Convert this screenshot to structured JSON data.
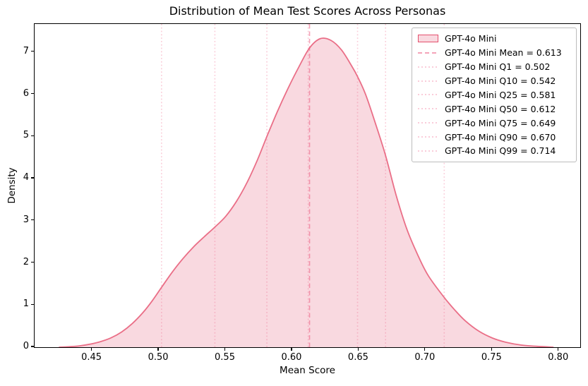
{
  "figure": {
    "title": "Distribution of Mean Test Scores Across Personas",
    "xlabel": "Mean Score",
    "ylabel": "Density"
  },
  "chart_data": {
    "type": "area",
    "subtype": "kde-density",
    "title": "Distribution of Mean Test Scores Across Personas",
    "xlabel": "Mean Score",
    "ylabel": "Density",
    "xlim": [
      0.4068,
      0.816
    ],
    "ylim": [
      0,
      7.667
    ],
    "grid": false,
    "x_ticks": [
      0.45,
      0.5,
      0.55,
      0.6,
      0.65,
      0.7,
      0.75,
      0.8
    ],
    "x_tick_labels": [
      "0.45",
      "0.50",
      "0.55",
      "0.60",
      "0.65",
      "0.70",
      "0.75",
      "0.80"
    ],
    "y_ticks": [
      0,
      1,
      2,
      3,
      4,
      5,
      6,
      7
    ],
    "y_tick_labels": [
      "0",
      "1",
      "2",
      "3",
      "4",
      "5",
      "6",
      "7"
    ],
    "series": [
      {
        "name": "GPT-4o Mini",
        "x": [
          0.425,
          0.432,
          0.44,
          0.448,
          0.456,
          0.464,
          0.472,
          0.48,
          0.488,
          0.495,
          0.502,
          0.51,
          0.518,
          0.526,
          0.534,
          0.542,
          0.55,
          0.558,
          0.566,
          0.574,
          0.581,
          0.589,
          0.597,
          0.605,
          0.613,
          0.621,
          0.629,
          0.637,
          0.645,
          0.649,
          0.655,
          0.662,
          0.67,
          0.678,
          0.686,
          0.694,
          0.702,
          0.714,
          0.722,
          0.73,
          0.74,
          0.75,
          0.76,
          0.772,
          0.784,
          0.796
        ],
        "density": [
          0.0,
          0.01,
          0.03,
          0.07,
          0.13,
          0.22,
          0.36,
          0.56,
          0.82,
          1.1,
          1.42,
          1.78,
          2.1,
          2.38,
          2.62,
          2.85,
          3.1,
          3.45,
          3.9,
          4.45,
          5.0,
          5.6,
          6.15,
          6.65,
          7.1,
          7.32,
          7.28,
          7.05,
          6.65,
          6.42,
          6.0,
          5.35,
          4.55,
          3.6,
          2.8,
          2.2,
          1.7,
          1.18,
          0.88,
          0.62,
          0.38,
          0.22,
          0.12,
          0.05,
          0.02,
          0.0
        ]
      }
    ],
    "stat_lines": [
      {
        "id": "mean",
        "value": 0.613,
        "style": "dashed"
      },
      {
        "id": "q1",
        "value": 0.502,
        "style": "dotted"
      },
      {
        "id": "q10",
        "value": 0.542,
        "style": "dotted"
      },
      {
        "id": "q25",
        "value": 0.581,
        "style": "dotted"
      },
      {
        "id": "q50",
        "value": 0.612,
        "style": "dotted"
      },
      {
        "id": "q75",
        "value": 0.649,
        "style": "dotted"
      },
      {
        "id": "q90",
        "value": 0.67,
        "style": "dotted"
      },
      {
        "id": "q99",
        "value": 0.714,
        "style": "dotted"
      }
    ],
    "legend": {
      "position": "upper right",
      "entries": [
        {
          "sample": "patch",
          "label": "GPT-4o Mini"
        },
        {
          "sample": "dashed",
          "label": "GPT-4o Mini Mean = 0.613"
        },
        {
          "sample": "dotted",
          "label": "GPT-4o Mini Q1 = 0.502"
        },
        {
          "sample": "dotted",
          "label": "GPT-4o Mini Q10 = 0.542"
        },
        {
          "sample": "dotted",
          "label": "GPT-4o Mini Q25 = 0.581"
        },
        {
          "sample": "dotted",
          "label": "GPT-4o Mini Q50 = 0.612"
        },
        {
          "sample": "dotted",
          "label": "GPT-4o Mini Q75 = 0.649"
        },
        {
          "sample": "dotted",
          "label": "GPT-4o Mini Q90 = 0.670"
        },
        {
          "sample": "dotted",
          "label": "GPT-4o Mini Q99 = 0.714"
        }
      ]
    },
    "colors": {
      "accent": "#DC143C",
      "curve_stroke": "rgba(220,20,60,0.58)",
      "curve_fill": "rgba(220,20,60,0.16)",
      "mean_line": "rgba(233,78,119,0.52)",
      "quantile_line": "rgba(240,98,138,0.32)",
      "spine": "#000000",
      "legend_border": "#bcbcbc"
    }
  }
}
